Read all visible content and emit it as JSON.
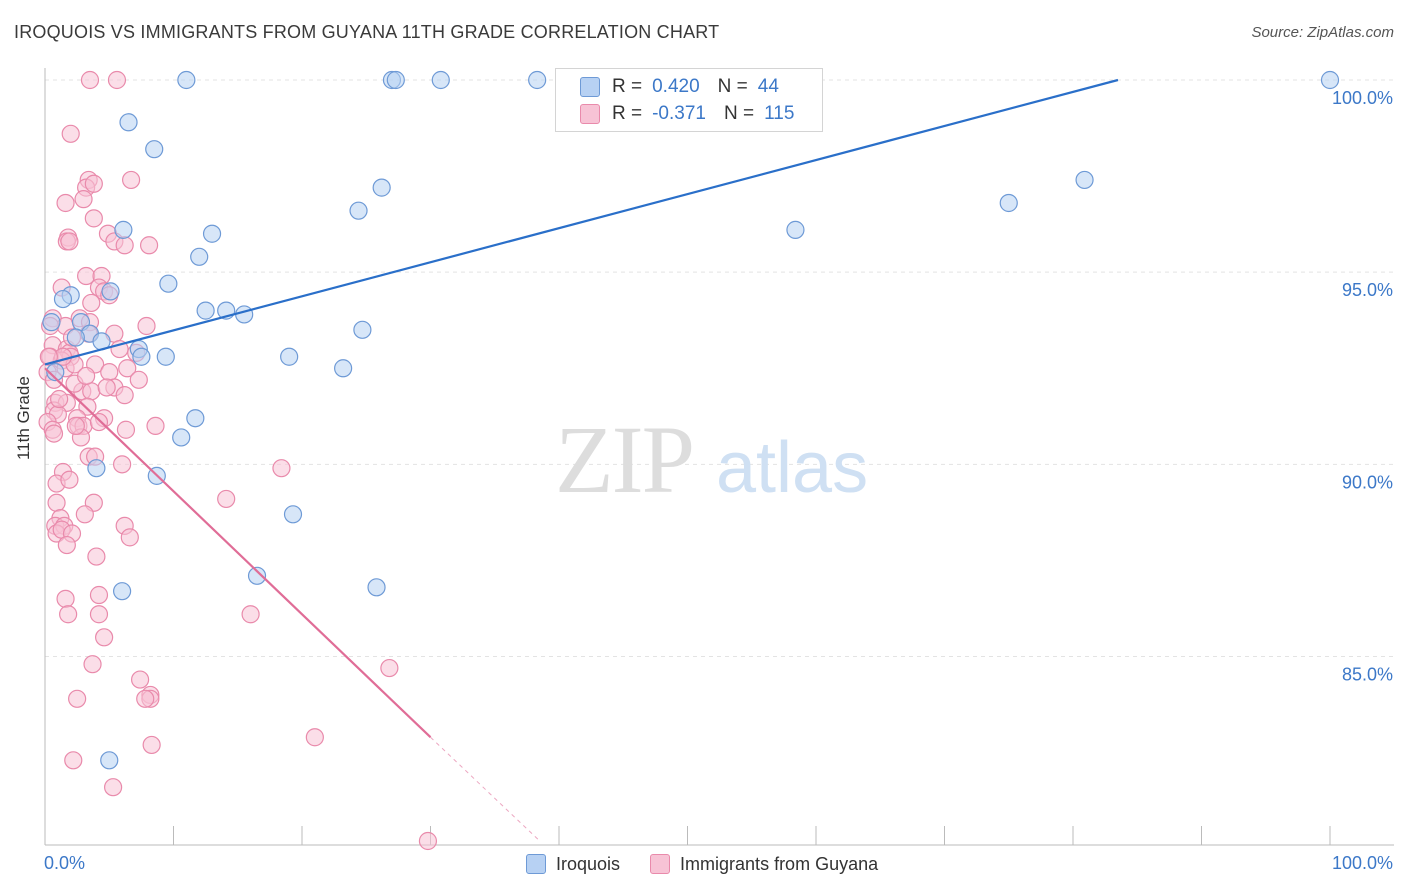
{
  "title": "IROQUOIS VS IMMIGRANTS FROM GUYANA 11TH GRADE CORRELATION CHART",
  "source": "Source: ZipAtlas.com",
  "watermark": {
    "zip": "ZIP",
    "atlas": "atlas"
  },
  "colors": {
    "blue_fill": "#b7d1f3",
    "blue_stroke": "#6e9ad6",
    "blue_line": "#2a6fc9",
    "pink_fill": "#f7c3d5",
    "pink_stroke": "#e98aab",
    "pink_line": "#e06d97",
    "tick_label": "#3c78c8",
    "grid": "#e3e3e3"
  },
  "legend_top": [
    {
      "r_label": "R =",
      "r_value": "0.420",
      "n_label": "N =",
      "n_value": "44"
    },
    {
      "r_label": "R =",
      "r_value": "-0.371",
      "n_label": "N =",
      "n_value": "115"
    }
  ],
  "chart_data": {
    "type": "scatter",
    "title": "IROQUOIS VS IMMIGRANTS FROM GUYANA 11TH GRADE CORRELATION CHART",
    "xlabel": "",
    "ylabel": "11th Grade",
    "xlim": [
      0,
      100
    ],
    "ylim": [
      80.2,
      100.6
    ],
    "x_tick_labels": [
      "0.0%",
      "100.0%"
    ],
    "y_ticks": [
      85,
      90,
      95,
      100
    ],
    "y_tick_labels": [
      "85.0%",
      "90.0%",
      "95.0%",
      "100.0%"
    ],
    "grid": true,
    "legend_position": "bottom-center",
    "series": [
      {
        "name": "Iroquois",
        "color": "#b7d1f3",
        "trend": {
          "x": [
            0,
            83.5
          ],
          "y": [
            92.6,
            100.0
          ]
        },
        "points": [
          [
            11.0,
            100
          ],
          [
            27.0,
            100
          ],
          [
            27.3,
            100
          ],
          [
            30.8,
            100
          ],
          [
            38.3,
            100
          ],
          [
            100,
            100
          ],
          [
            6.5,
            98.9
          ],
          [
            8.5,
            98.2
          ],
          [
            26.2,
            97.2
          ],
          [
            24.4,
            96.6
          ],
          [
            58.4,
            96.1
          ],
          [
            75.0,
            96.8
          ],
          [
            80.9,
            97.4
          ],
          [
            6.1,
            96.1
          ],
          [
            13.0,
            96.0
          ],
          [
            12.0,
            95.4
          ],
          [
            9.6,
            94.7
          ],
          [
            2.0,
            94.4
          ],
          [
            5.1,
            94.5
          ],
          [
            12.5,
            94.0
          ],
          [
            14.1,
            94.0
          ],
          [
            15.5,
            93.9
          ],
          [
            0.5,
            93.7
          ],
          [
            2.8,
            93.7
          ],
          [
            3.5,
            93.4
          ],
          [
            2.4,
            93.3
          ],
          [
            4.4,
            93.2
          ],
          [
            7.3,
            93.0
          ],
          [
            7.5,
            92.8
          ],
          [
            9.4,
            92.8
          ],
          [
            19.0,
            92.8
          ],
          [
            24.7,
            93.5
          ],
          [
            23.2,
            92.5
          ],
          [
            0.8,
            92.4
          ],
          [
            11.7,
            91.2
          ],
          [
            10.6,
            90.7
          ],
          [
            4.0,
            89.9
          ],
          [
            8.7,
            89.7
          ],
          [
            19.3,
            88.7
          ],
          [
            16.5,
            87.1
          ],
          [
            6.0,
            86.7
          ],
          [
            25.8,
            86.8
          ],
          [
            5.0,
            82.3
          ],
          [
            1.4,
            94.3
          ]
        ]
      },
      {
        "name": "Immigrants from Guyana",
        "color": "#f7c3d5",
        "trend": {
          "x": [
            0,
            30.0
          ],
          "y": [
            92.5,
            82.9
          ]
        },
        "trend_dashed": {
          "x": [
            30.0,
            38.5
          ],
          "y": [
            82.9,
            80.2
          ]
        },
        "points": [
          [
            3.5,
            100
          ],
          [
            5.6,
            100
          ],
          [
            2.0,
            98.6
          ],
          [
            3.4,
            97.4
          ],
          [
            3.2,
            97.2
          ],
          [
            3.8,
            97.3
          ],
          [
            6.7,
            97.4
          ],
          [
            1.6,
            96.8
          ],
          [
            3.0,
            96.9
          ],
          [
            3.8,
            96.4
          ],
          [
            1.8,
            95.9
          ],
          [
            1.7,
            95.8
          ],
          [
            1.9,
            95.8
          ],
          [
            4.9,
            96.0
          ],
          [
            5.4,
            95.8
          ],
          [
            6.2,
            95.7
          ],
          [
            8.1,
            95.7
          ],
          [
            3.2,
            94.9
          ],
          [
            4.4,
            94.9
          ],
          [
            1.3,
            94.6
          ],
          [
            4.2,
            94.6
          ],
          [
            4.6,
            94.5
          ],
          [
            3.6,
            94.2
          ],
          [
            5.0,
            94.4
          ],
          [
            0.6,
            93.8
          ],
          [
            1.6,
            93.6
          ],
          [
            2.7,
            93.8
          ],
          [
            0.4,
            93.6
          ],
          [
            3.5,
            93.7
          ],
          [
            7.9,
            93.6
          ],
          [
            3.4,
            93.4
          ],
          [
            5.4,
            93.4
          ],
          [
            0.6,
            93.1
          ],
          [
            1.7,
            93.0
          ],
          [
            0.4,
            92.8
          ],
          [
            1.9,
            92.9
          ],
          [
            2.0,
            92.8
          ],
          [
            1.3,
            92.7
          ],
          [
            1.6,
            92.5
          ],
          [
            2.3,
            92.6
          ],
          [
            0.2,
            92.4
          ],
          [
            3.9,
            92.6
          ],
          [
            5.0,
            92.4
          ],
          [
            6.4,
            92.5
          ],
          [
            0.7,
            92.2
          ],
          [
            7.3,
            92.2
          ],
          [
            2.9,
            91.9
          ],
          [
            3.6,
            91.9
          ],
          [
            5.4,
            92.0
          ],
          [
            6.2,
            91.8
          ],
          [
            0.8,
            91.6
          ],
          [
            1.7,
            91.6
          ],
          [
            3.3,
            91.5
          ],
          [
            0.7,
            91.4
          ],
          [
            1.0,
            91.3
          ],
          [
            2.5,
            91.2
          ],
          [
            4.6,
            91.2
          ],
          [
            0.2,
            91.1
          ],
          [
            2.6,
            91.0
          ],
          [
            3.0,
            91.0
          ],
          [
            4.2,
            91.1
          ],
          [
            0.6,
            90.9
          ],
          [
            6.3,
            90.9
          ],
          [
            0.7,
            90.8
          ],
          [
            8.6,
            91.0
          ],
          [
            2.8,
            90.7
          ],
          [
            3.4,
            90.2
          ],
          [
            6.0,
            90.0
          ],
          [
            1.4,
            89.8
          ],
          [
            18.4,
            89.9
          ],
          [
            0.9,
            89.5
          ],
          [
            1.9,
            89.6
          ],
          [
            0.9,
            89.0
          ],
          [
            3.8,
            89.0
          ],
          [
            14.1,
            89.1
          ],
          [
            1.2,
            88.6
          ],
          [
            3.1,
            88.7
          ],
          [
            0.8,
            88.4
          ],
          [
            1.5,
            88.4
          ],
          [
            0.9,
            88.2
          ],
          [
            1.3,
            88.3
          ],
          [
            2.1,
            88.2
          ],
          [
            6.2,
            88.4
          ],
          [
            6.6,
            88.1
          ],
          [
            1.7,
            87.9
          ],
          [
            4.0,
            87.6
          ],
          [
            1.6,
            86.5
          ],
          [
            4.2,
            86.6
          ],
          [
            1.8,
            86.1
          ],
          [
            4.2,
            86.1
          ],
          [
            16.0,
            86.1
          ],
          [
            4.6,
            85.5
          ],
          [
            3.7,
            84.8
          ],
          [
            26.8,
            84.7
          ],
          [
            7.4,
            84.4
          ],
          [
            8.2,
            84.0
          ],
          [
            8.2,
            83.9
          ],
          [
            2.5,
            83.9
          ],
          [
            7.8,
            83.9
          ],
          [
            21.0,
            82.9
          ],
          [
            8.3,
            82.7
          ],
          [
            2.2,
            82.3
          ],
          [
            5.3,
            81.6
          ],
          [
            29.8,
            80.2
          ],
          [
            1.4,
            92.8
          ],
          [
            2.3,
            92.1
          ],
          [
            0.3,
            92.8
          ],
          [
            4.8,
            92.0
          ],
          [
            7.1,
            92.9
          ],
          [
            3.2,
            92.3
          ],
          [
            1.1,
            91.7
          ],
          [
            2.4,
            91.0
          ],
          [
            3.9,
            90.2
          ],
          [
            5.8,
            93.0
          ],
          [
            2.1,
            93.3
          ]
        ]
      }
    ]
  },
  "legend_bottom": [
    {
      "label": "Iroquois"
    },
    {
      "label": "Immigrants from Guyana"
    }
  ]
}
